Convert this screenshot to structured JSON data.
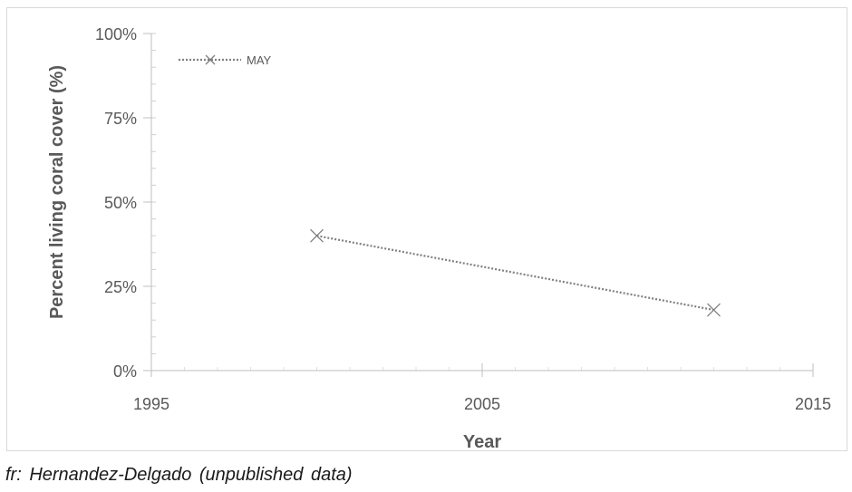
{
  "chart_data": {
    "type": "line",
    "xlabel": "Year",
    "ylabel": "Percent living coral cover (%)",
    "xlim": [
      1995,
      2015
    ],
    "ylim": [
      0,
      100
    ],
    "x_ticks": [
      1995,
      2005,
      2015
    ],
    "y_ticks": [
      0,
      25,
      50,
      75,
      100
    ],
    "y_tick_labels": [
      "0%",
      "25%",
      "50%",
      "75%",
      "100%"
    ],
    "grid": false,
    "legend_position": "top-left",
    "series": [
      {
        "name": "MAY",
        "color": "#808080",
        "line_style": "dotted",
        "marker": "x",
        "points": [
          {
            "x": 2000,
            "y": 40
          },
          {
            "x": 2012,
            "y": 18
          }
        ]
      }
    ]
  },
  "source_note": "fr: Hernandez-Delgado  (unpublished  data)"
}
